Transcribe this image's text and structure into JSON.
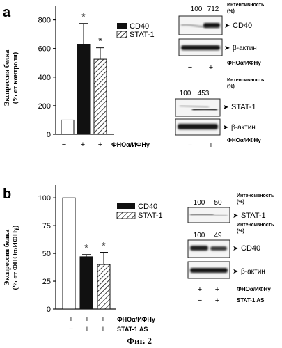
{
  "figure_label": "Фиг. 2",
  "chart_data": [
    {
      "panel_label": "a",
      "type": "bar",
      "ylabel_line1": "Экспрессия белка",
      "ylabel_line2": "(% от контроля)",
      "ylim": [
        0,
        900
      ],
      "yticks": [
        "0",
        "200",
        "400",
        "600",
        "800"
      ],
      "ytick_values": [
        0,
        200,
        400,
        600,
        800
      ],
      "categories": [
        "control",
        "CD40",
        "STAT-1"
      ],
      "values": [
        100,
        630,
        525
      ],
      "errors": [
        0,
        145,
        80
      ],
      "significance": [
        "",
        "*",
        "*"
      ],
      "legend": [
        "CD40",
        "STAT-1"
      ],
      "treatment_label": "ФНОα/ИФНγ",
      "treatment_signs": [
        "−",
        "+",
        "+"
      ]
    },
    {
      "panel_label": "b",
      "type": "bar",
      "ylabel_line1": "Экспрессия белка",
      "ylabel_line2": "(% от ФНОα/ИФНγ)",
      "ylim": [
        0,
        112
      ],
      "yticks": [
        "0",
        "25",
        "50",
        "75",
        "100"
      ],
      "ytick_values": [
        0,
        25,
        50,
        75,
        100
      ],
      "categories": [
        "ФНОα/ИФНγ",
        "CD40",
        "STAT-1"
      ],
      "values": [
        100,
        47,
        40
      ],
      "errors": [
        0,
        2,
        11
      ],
      "significance": [
        "",
        "*",
        "*"
      ],
      "legend": [
        "CD40",
        "STAT-1"
      ],
      "row1_label": "ФНОα/ИФНγ",
      "row1_signs": [
        "+",
        "+",
        "+"
      ],
      "row2_label": "STAT-1 AS",
      "row2_signs": [
        "−",
        "+",
        "+"
      ]
    }
  ],
  "blots_a": {
    "intensity_label": "Интенсивность",
    "intensity_unit": "(%)",
    "cd40_values": [
      "100",
      "712"
    ],
    "cd40_label": "CD40",
    "actin_label": "β-актин",
    "stat_values": [
      "100",
      "453"
    ],
    "stat_label": "STAT-1",
    "treatment_label": "ФНОα/ИФНγ",
    "signs": [
      "−",
      "+"
    ]
  },
  "blots_b": {
    "intensity_label": "Интенсивность",
    "intensity_unit": "(%)",
    "stat_values": [
      "100",
      "50"
    ],
    "stat_label": "STAT-1",
    "cd40_values": [
      "100",
      "49"
    ],
    "cd40_label": "CD40",
    "actin_label": "β-актин",
    "row1_label": "ФНОα/ИФНγ",
    "row1_signs": [
      "+",
      "+"
    ],
    "row2_label": "STAT-1 AS",
    "row2_signs": [
      "−",
      "+"
    ]
  }
}
